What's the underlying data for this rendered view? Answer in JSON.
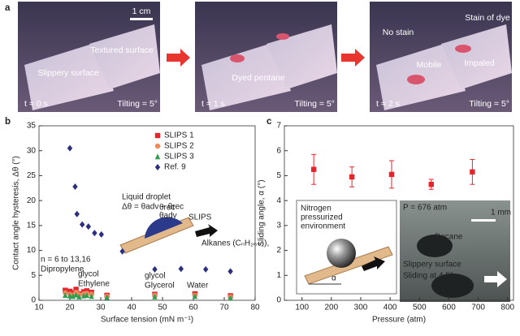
{
  "figure": {
    "panel_a": {
      "label": "a",
      "photo_1": {
        "scale_bar": "1 cm",
        "texts": [
          "Textured surface",
          "Slippery surface"
        ],
        "time": "t = 0 s",
        "tilt": "Tilting = 5°"
      },
      "photo_2": {
        "texts": [
          "Dyed pentane"
        ],
        "time": "t = 1 s",
        "tilt": "Tilting = 5°"
      },
      "photo_3": {
        "texts": [
          "No stain",
          "Stain of dye",
          "Mobile",
          "Impaled"
        ],
        "time": "t = 2 s",
        "tilt": "Tilting = 5°"
      }
    }
  },
  "chart_data": [
    {
      "type": "scatter",
      "label": "b",
      "x_label": "Surface tension (mN m⁻¹)",
      "y_label": "Contact angle hysteresis, Δθ (°)",
      "xlim": [
        10,
        80
      ],
      "xticks": [
        10,
        20,
        30,
        40,
        50,
        60,
        70,
        80
      ],
      "ylim": [
        0,
        35
      ],
      "yticks": [
        0,
        5,
        10,
        15,
        20,
        25,
        30,
        35
      ],
      "legend": "top-right",
      "series": [
        {
          "name": "SLIPS 1",
          "color": "#e3262c",
          "marker": "square",
          "x": [
            18.5,
            20,
            21,
            22,
            23,
            24.5,
            25.5,
            27,
            32,
            47.5,
            60.5,
            72
          ],
          "values": [
            2.0,
            1.8,
            1.5,
            2.2,
            1.3,
            1.7,
            1.9,
            1.6,
            1.0,
            1.2,
            1.3,
            0.9
          ]
        },
        {
          "name": "SLIPS 2",
          "color": "#f08a5d",
          "marker": "circle",
          "x": [
            18.5,
            20,
            21,
            22,
            23,
            24.5,
            25.5,
            27,
            32,
            47.5,
            60.5,
            72
          ],
          "values": [
            1.5,
            1.2,
            1.0,
            1.6,
            1.1,
            1.3,
            1.4,
            1.2,
            0.8,
            1.0,
            1.0,
            0.7
          ]
        },
        {
          "name": "SLIPS 3",
          "color": "#2e9e4f",
          "marker": "triangle",
          "x": [
            18.5,
            20,
            21,
            22,
            23,
            24.5,
            25.5,
            27,
            32,
            47.5,
            60.5,
            72
          ],
          "values": [
            1.0,
            0.9,
            0.8,
            1.1,
            0.7,
            0.9,
            1.0,
            0.8,
            0.6,
            0.7,
            0.8,
            0.5
          ]
        },
        {
          "name": "Ref. 9",
          "color": "#2b2f7e",
          "marker": "diamond",
          "x": [
            20,
            21.7,
            22.3,
            24,
            26,
            28,
            30.2,
            37,
            47.5,
            56,
            64,
            72
          ],
          "values": [
            30.5,
            22.8,
            17.3,
            15.2,
            14.8,
            13.5,
            13.2,
            9.8,
            6.2,
            6.3,
            6.2,
            5.8
          ]
        }
      ],
      "annotations": [
        "Liquid droplet",
        "Δθ = θadv − θrec",
        "θrec",
        "θadv",
        "SLIPS",
        "Alkanes (CₙH₂ₙ₊₂),",
        "n = 6 to 13,16",
        "Dipropylene",
        "glycol",
        "Ethylene",
        "glycol",
        "Glycerol",
        "Water"
      ]
    },
    {
      "type": "scatter",
      "label": "c",
      "x_label": "Pressure (atm)",
      "y_label": "Sliding angle, α (°)",
      "xlim": [
        40,
        820
      ],
      "xticks": [
        100,
        200,
        300,
        400,
        500,
        600,
        700,
        800
      ],
      "ylim": [
        0,
        7
      ],
      "yticks": [
        0,
        1,
        2,
        3,
        4,
        5,
        6,
        7
      ],
      "series": [
        {
          "color": "#e3262c",
          "marker": "square",
          "x": [
            140,
            270,
            405,
            540,
            680
          ],
          "values": [
            5.25,
            4.95,
            5.05,
            4.65,
            5.15
          ],
          "errors": [
            0.6,
            0.4,
            0.55,
            0.2,
            0.5
          ]
        }
      ],
      "annotations": [
        "Nitrogen",
        "pressurized",
        "environment",
        "α",
        "P = 676 atm",
        "1 mm",
        "Decane",
        "Slippery surface",
        "Sliding at 4.5°"
      ]
    }
  ]
}
